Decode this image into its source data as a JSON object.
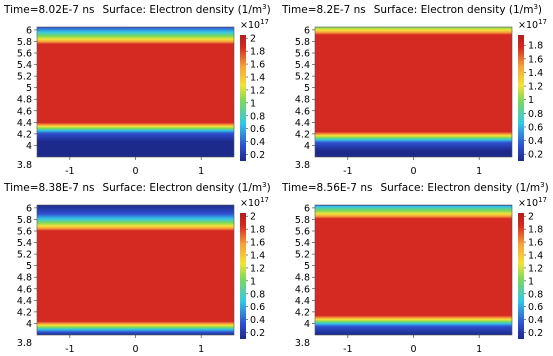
{
  "chart_data": [
    {
      "type": "heatmap",
      "title_time": "Time=8.02E-7 ns",
      "title_surface": "Surface: Electron density (1/m",
      "title_unit_exp": "3",
      "title_close": ")",
      "xlim": [
        -1.5,
        1.5
      ],
      "ylim": [
        3.8,
        6.05
      ],
      "xticks": [
        "-1",
        "0",
        "1"
      ],
      "yticks": [
        "4",
        "4.2",
        "4.4",
        "4.6",
        "4.8",
        "5",
        "5.2",
        "5.4",
        "5.6",
        "5.8",
        "6"
      ],
      "y_extra_tick": "3.8",
      "band_y": [
        4.38,
        5.77
      ],
      "colorbar": {
        "multiplier": "×10",
        "multiplier_exp": "17",
        "range": [
          0.1,
          2.05
        ],
        "ticks": [
          "0.2",
          "0.4",
          "0.6",
          "0.8",
          "1",
          "1.2",
          "1.4",
          "1.6",
          "1.8",
          "2"
        ]
      }
    },
    {
      "type": "heatmap",
      "title_time": "Time=8.2E-7 ns",
      "title_surface": "Surface: Electron density (1/m",
      "title_unit_exp": "3",
      "title_close": ")",
      "xlim": [
        -1.5,
        1.5
      ],
      "ylim": [
        3.8,
        6.05
      ],
      "xticks": [
        "-1",
        "0",
        "1"
      ],
      "yticks": [
        "4",
        "4.2",
        "4.4",
        "4.6",
        "4.8",
        "5",
        "5.2",
        "5.4",
        "5.6",
        "5.8",
        "6"
      ],
      "y_extra_tick": "3.8",
      "band_y": [
        4.22,
        5.93
      ],
      "colorbar": {
        "multiplier": "×10",
        "multiplier_exp": "17",
        "range": [
          0.1,
          1.95
        ],
        "ticks": [
          "0.2",
          "0.4",
          "0.6",
          "0.8",
          "1",
          "1.2",
          "1.4",
          "1.6",
          "1.8"
        ]
      }
    },
    {
      "type": "heatmap",
      "title_time": "Time=8.38E-7 ns",
      "title_surface": "Surface: Electron density (1/m",
      "title_unit_exp": "3",
      "title_close": ")",
      "xlim": [
        -1.5,
        1.5
      ],
      "ylim": [
        3.8,
        6.05
      ],
      "xticks": [
        "-1",
        "0",
        "1"
      ],
      "yticks": [
        "4",
        "4.2",
        "4.4",
        "4.6",
        "4.8",
        "5",
        "5.2",
        "5.4",
        "5.6",
        "5.8",
        "6"
      ],
      "y_extra_tick": "3.8",
      "band_y": [
        4.02,
        5.62
      ],
      "colorbar": {
        "multiplier": "×10",
        "multiplier_exp": "17",
        "range": [
          0.1,
          2.05
        ],
        "ticks": [
          "0.2",
          "0.4",
          "0.6",
          "0.8",
          "1",
          "1.2",
          "1.4",
          "1.6",
          "1.8",
          "2"
        ]
      }
    },
    {
      "type": "heatmap",
      "title_time": "Time=8.56E-7 ns",
      "title_surface": "Surface: Electron density (1/m",
      "title_unit_exp": "3",
      "title_close": ")",
      "xlim": [
        -1.5,
        1.5
      ],
      "ylim": [
        3.8,
        6.05
      ],
      "xticks": [
        "-1",
        "0",
        "1"
      ],
      "yticks": [
        "4",
        "4.2",
        "4.4",
        "4.6",
        "4.8",
        "5",
        "5.2",
        "5.4",
        "5.6",
        "5.8",
        "6"
      ],
      "y_extra_tick": "3.8",
      "band_y": [
        4.12,
        5.83
      ],
      "colorbar": {
        "multiplier": "×10",
        "multiplier_exp": "17",
        "range": [
          0.1,
          2.05
        ],
        "ticks": [
          "0.2",
          "0.4",
          "0.6",
          "0.8",
          "1",
          "1.2",
          "1.4",
          "1.6",
          "1.8",
          "2"
        ]
      }
    }
  ],
  "colors": {
    "dark_blue": "#1c2a8c",
    "blue": "#2f4fd0",
    "cyan": "#34c8e6",
    "green": "#7ed957",
    "yellow": "#f2e33a",
    "orange": "#f7a23a",
    "red": "#d42a22",
    "dark_red": "#b51c1c"
  }
}
